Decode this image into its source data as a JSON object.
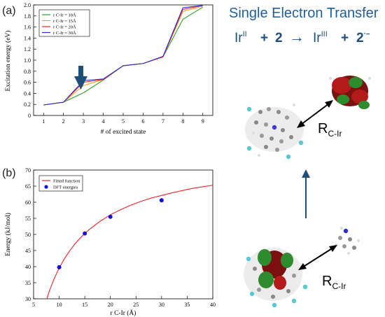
{
  "colors": {
    "green": "#2ca02c",
    "orange": "#f2a22c",
    "red": "#e8232a",
    "blue": "#2d2dd8",
    "arrow_dark": "#1f4e79",
    "title_blue": "#1f5f99",
    "fit_red": "#e8232a",
    "dft_blue": "#1010e0"
  },
  "panel_a": {
    "label": "(a)",
    "title": "",
    "down_arrow_icon": "down-arrow-icon"
  },
  "panel_b": {
    "label": "(b)",
    "title": ""
  },
  "chart_data": [
    {
      "type": "line",
      "title": "",
      "xlabel": "# of excited state",
      "ylabel": "Excitation energy (eV)",
      "x": [
        1,
        2,
        3,
        4,
        5,
        6,
        7,
        8,
        9
      ],
      "xlim": [
        0.5,
        9.5
      ],
      "ylim": [
        0,
        2.0
      ],
      "xticks": [
        "1",
        "2",
        "3",
        "4",
        "5",
        "6",
        "7",
        "8",
        "9"
      ],
      "yticks": [
        "0",
        "0.2",
        "0.4",
        "0.6",
        "0.8",
        "1.0",
        "1.2",
        "1.4",
        "1.6",
        "1.8",
        "2.0"
      ],
      "grid": false,
      "legend": "top-left",
      "series": [
        {
          "name": "r C-Ir = 10Å",
          "values": [
            0.19,
            0.24,
            0.41,
            0.64,
            0.9,
            0.94,
            1.06,
            1.74,
            1.96
          ]
        },
        {
          "name": "r C-Ir = 15Å",
          "values": [
            0.19,
            0.24,
            0.54,
            0.65,
            0.9,
            0.94,
            1.06,
            1.88,
            1.98
          ]
        },
        {
          "name": "r C-Ir = 20Å",
          "values": [
            0.19,
            0.24,
            0.6,
            0.65,
            0.9,
            0.94,
            1.06,
            1.92,
            1.99
          ]
        },
        {
          "name": "r C-Ir = 30Å",
          "values": [
            0.19,
            0.24,
            0.63,
            0.66,
            0.9,
            0.94,
            1.07,
            1.95,
            1.99
          ]
        }
      ]
    },
    {
      "type": "line",
      "title": "",
      "xlabel": "r C-Ir (Å)",
      "ylabel": "Energy (kJ/mol)",
      "xlim": [
        5,
        40
      ],
      "ylim": [
        30,
        70
      ],
      "xticks": [
        "5",
        "10",
        "15",
        "20",
        "25",
        "30",
        "35",
        "40"
      ],
      "yticks": [
        "30",
        "35",
        "40",
        "45",
        "50",
        "55",
        "60",
        "65",
        "70"
      ],
      "grid": false,
      "legend": "top-left",
      "series": [
        {
          "name": "Fitted function",
          "x": [
            7.6,
            8,
            9,
            10,
            11,
            12,
            13,
            14,
            15,
            16,
            17,
            18,
            19,
            20,
            22,
            24,
            26,
            28,
            30,
            32,
            34,
            36,
            38,
            40
          ],
          "values": [
            30.0,
            32.1,
            36.2,
            39.6,
            42.4,
            44.8,
            46.9,
            48.7,
            50.3,
            51.7,
            52.9,
            54.1,
            55.1,
            56.1,
            57.7,
            59.1,
            60.3,
            61.3,
            62.1,
            62.9,
            63.6,
            64.3,
            64.8,
            65.3
          ]
        },
        {
          "name": "DFT energies",
          "x": [
            10,
            15,
            20,
            30
          ],
          "values": [
            39.8,
            50.3,
            55.5,
            60.6
          ]
        }
      ]
    }
  ],
  "right_panel": {
    "title": "Single Electron Transfer",
    "equation": {
      "lhs_base": "Ir",
      "lhs_sup": "II",
      "plus1": "+",
      "lhs_num": "2",
      "arrow": "→",
      "rhs_base": "Ir",
      "rhs_sup": "III",
      "plus2": "+",
      "rhs_num": "2",
      "rhs_sup2": "·–"
    },
    "r_label_top": {
      "base": "R",
      "sub": "C-Ir"
    },
    "r_label_bottom": {
      "base": "R",
      "sub": "C-Ir"
    }
  }
}
